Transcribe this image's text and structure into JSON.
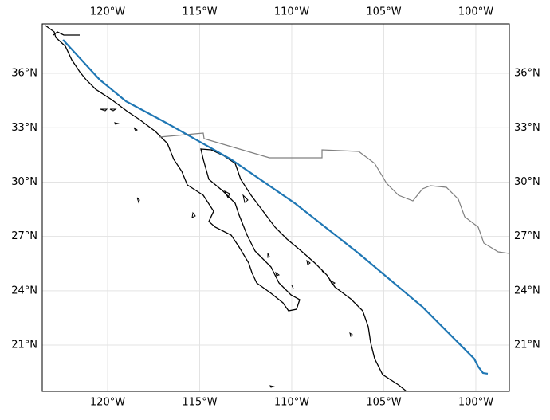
{
  "chart_data": {
    "type": "line",
    "xlim": [
      -123.55,
      -98.18
    ],
    "ylim": [
      18.45,
      38.73
    ],
    "xticks": [
      {
        "value": -120,
        "label": "120°W"
      },
      {
        "value": -115,
        "label": "115°W"
      },
      {
        "value": -110,
        "label": "110°W"
      },
      {
        "value": -105,
        "label": "105°W"
      },
      {
        "value": -100,
        "label": "100°W"
      }
    ],
    "yticks": [
      {
        "value": 21,
        "label": "21°N"
      },
      {
        "value": 24,
        "label": "24°N"
      },
      {
        "value": 27,
        "label": "27°N"
      },
      {
        "value": 30,
        "label": "30°N"
      },
      {
        "value": 33,
        "label": "33°N"
      },
      {
        "value": 36,
        "label": "36°N"
      }
    ],
    "grid": true,
    "series": [
      {
        "color": "#1f77b4",
        "x": [
          -122.42,
          -120.43,
          -119.0,
          -116.75,
          -113.29,
          -109.83,
          -106.36,
          -102.9,
          -100.09,
          -99.87,
          -99.61,
          -99.35
        ],
        "values": [
          37.85,
          35.65,
          34.46,
          33.23,
          31.25,
          28.83,
          26.06,
          23.11,
          20.25,
          19.81,
          19.46,
          19.42
        ]
      }
    ]
  }
}
